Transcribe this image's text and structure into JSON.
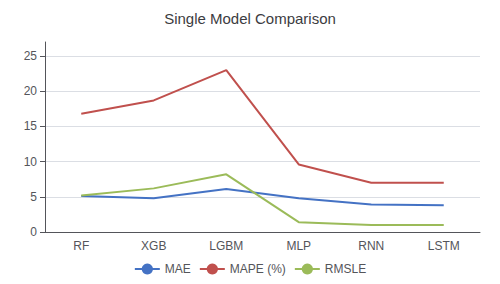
{
  "chart_data": {
    "type": "line",
    "title": "Single Model Comparison",
    "categories": [
      "RF",
      "XGB",
      "LGBM",
      "MLP",
      "RNN",
      "LSTM"
    ],
    "series": [
      {
        "name": "MAE",
        "color": "#4472C4",
        "values": [
          5.1,
          4.8,
          6.1,
          4.8,
          3.9,
          3.8
        ]
      },
      {
        "name": "MAPE (%)",
        "color": "#C0504D",
        "values": [
          16.8,
          18.7,
          23.0,
          9.6,
          7.0,
          7.0
        ]
      },
      {
        "name": "RMSLE",
        "color": "#9BBB59",
        "values": [
          5.2,
          6.2,
          8.2,
          1.4,
          1.0,
          1.0
        ]
      }
    ],
    "ylim": [
      0,
      27
    ],
    "yticks": [
      0,
      5,
      10,
      15,
      20,
      25
    ],
    "grid": true,
    "legend": "bottom"
  }
}
